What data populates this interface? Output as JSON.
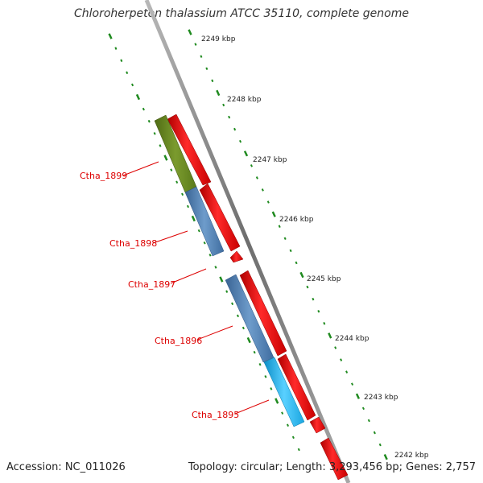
{
  "title": "Chloroherpeton thalassium ATCC 35110, complete genome",
  "accession": "Accession: NC_011026",
  "summary": "Topology: circular; Length: 3,293,456 bp; Genes: 2,757",
  "colors": {
    "backbone": "#8c8c8c",
    "tick": "#1f8a1f",
    "forward_gene": "#ee1111",
    "gene_label": "#dd0000",
    "reverse_gene_green": "#6b8e23",
    "reverse_gene_steel": "#4f7fb3",
    "reverse_gene_cyan": "#22b8ee"
  },
  "scale_labels": [
    "2249 kbp",
    "2248 kbp",
    "2247 kbp",
    "2246 kbp",
    "2245 kbp",
    "2244 kbp",
    "2243 kbp",
    "2242 kbp"
  ],
  "gene_labels": [
    "Ctha_1899",
    "Ctha_1898",
    "Ctha_1897",
    "Ctha_1896",
    "Ctha_1895"
  ]
}
